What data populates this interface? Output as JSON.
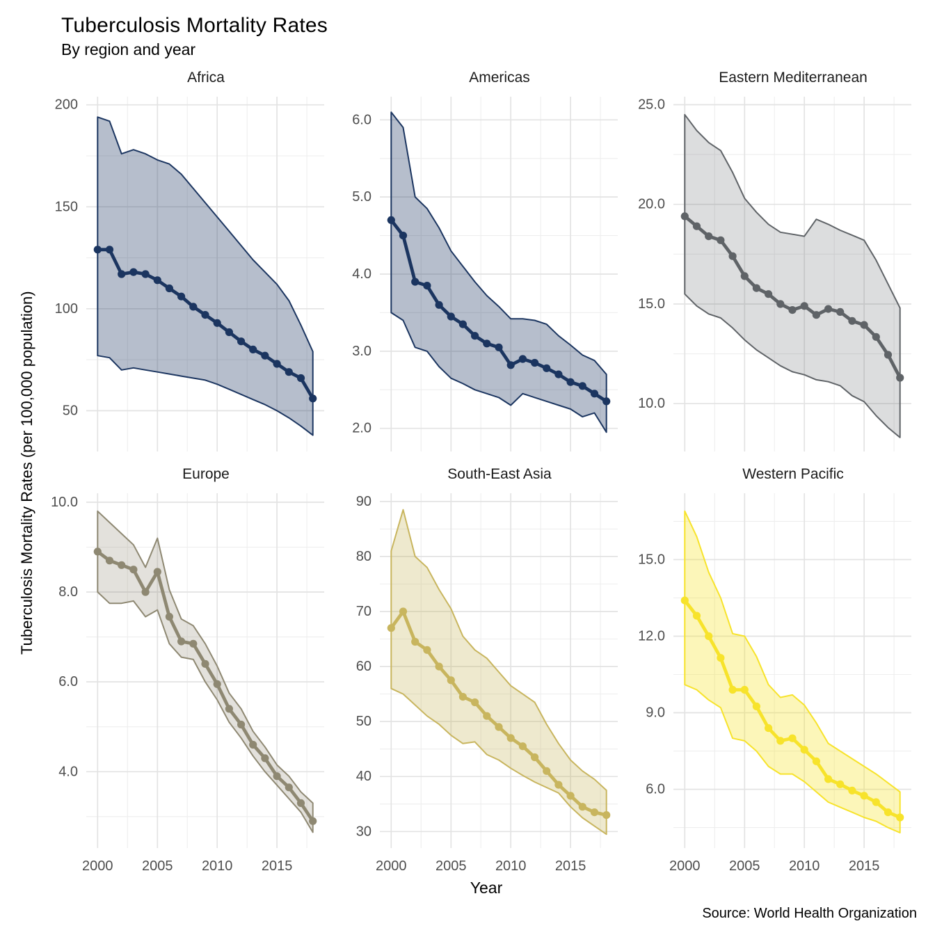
{
  "header": {
    "title": "Tuberculosis Mortality Rates",
    "subtitle": "By region and year"
  },
  "caption": "Source: World Health Organization",
  "axes": {
    "x_label": "Year",
    "y_label": "Tuberculosis Mortality Rates (per 100,000 population)",
    "x_tick_values": [
      2000,
      2005,
      2010,
      2015
    ],
    "x_tick_labels": [
      "2000",
      "2005",
      "2010",
      "2015"
    ],
    "x_minor": [
      2002.5,
      2007.5,
      2012.5,
      2017.5
    ],
    "x_range": [
      1999.05,
      2018.95
    ],
    "grid": "on",
    "background": "#ffffff"
  },
  "style": {
    "major_grid_color": "#e3e3e3",
    "minor_grid_color": "#eeeeee",
    "tick_label_color": "#4d4d4d"
  },
  "chart_data": [
    {
      "type": "line",
      "name": "Africa",
      "line_color": "#1b3560",
      "ribbon_opacity": 0.32,
      "ylim": [
        30,
        204
      ],
      "y_tick_values": [
        50,
        100,
        150,
        200
      ],
      "y_tick_labels": [
        "50",
        "100",
        "150",
        "200"
      ],
      "y_minor": [
        75,
        125,
        175
      ],
      "x": [
        2000,
        2001,
        2002,
        2003,
        2004,
        2005,
        2006,
        2007,
        2008,
        2009,
        2010,
        2011,
        2012,
        2013,
        2014,
        2015,
        2016,
        2017,
        2018
      ],
      "values": [
        129,
        129,
        117,
        118,
        117,
        114,
        110,
        106,
        101,
        97,
        93,
        88.5,
        84,
        80,
        77,
        73,
        69,
        66,
        56
      ],
      "upper": [
        194,
        192,
        176,
        178,
        176,
        173,
        171,
        166,
        159,
        152,
        145,
        138,
        131,
        124,
        118,
        112,
        104,
        92,
        79
      ],
      "lower": [
        77,
        76,
        70,
        71,
        70,
        69,
        68,
        67,
        66,
        65,
        63,
        60.5,
        58,
        55.5,
        53,
        50,
        46.5,
        42.5,
        38
      ]
    },
    {
      "type": "line",
      "name": "Americas",
      "line_color": "#1b3560",
      "ribbon_opacity": 0.32,
      "ylim": [
        1.7,
        6.3
      ],
      "y_tick_values": [
        2,
        3,
        4,
        5,
        6
      ],
      "y_tick_labels": [
        "2.0",
        "3.0",
        "4.0",
        "5.0",
        "6.0"
      ],
      "y_minor": [
        2.5,
        3.5,
        4.5,
        5.5
      ],
      "x": [
        2000,
        2001,
        2002,
        2003,
        2004,
        2005,
        2006,
        2007,
        2008,
        2009,
        2010,
        2011,
        2012,
        2013,
        2014,
        2015,
        2016,
        2017,
        2018
      ],
      "values": [
        4.7,
        4.5,
        3.9,
        3.85,
        3.6,
        3.45,
        3.35,
        3.2,
        3.1,
        3.05,
        2.82,
        2.9,
        2.85,
        2.78,
        2.7,
        2.6,
        2.55,
        2.45,
        2.35
      ],
      "upper": [
        6.1,
        5.9,
        5.0,
        4.85,
        4.6,
        4.3,
        4.1,
        3.9,
        3.72,
        3.58,
        3.42,
        3.42,
        3.4,
        3.35,
        3.2,
        3.08,
        2.95,
        2.88,
        2.7
      ],
      "lower": [
        3.5,
        3.4,
        3.05,
        3.0,
        2.8,
        2.65,
        2.58,
        2.5,
        2.45,
        2.4,
        2.3,
        2.45,
        2.4,
        2.35,
        2.3,
        2.25,
        2.15,
        2.2,
        1.95
      ]
    },
    {
      "type": "line",
      "name": "Eastern Mediterranean",
      "line_color": "#5f6367",
      "ribbon_opacity": 0.22,
      "ylim": [
        7.6,
        25.4
      ],
      "y_tick_values": [
        10,
        15,
        20,
        25
      ],
      "y_tick_labels": [
        "10.0",
        "15.0",
        "20.0",
        "25.0"
      ],
      "y_minor": [
        12.5,
        17.5,
        22.5
      ],
      "x": [
        2000,
        2001,
        2002,
        2003,
        2004,
        2005,
        2006,
        2007,
        2008,
        2009,
        2010,
        2011,
        2012,
        2013,
        2014,
        2015,
        2016,
        2017,
        2018
      ],
      "values": [
        19.4,
        18.9,
        18.4,
        18.2,
        17.4,
        16.4,
        15.8,
        15.5,
        15.0,
        14.7,
        14.9,
        14.45,
        14.75,
        14.6,
        14.15,
        13.95,
        13.35,
        12.45,
        11.3
      ],
      "upper": [
        24.5,
        23.7,
        23.1,
        22.7,
        21.6,
        20.3,
        19.6,
        19.0,
        18.6,
        18.5,
        18.4,
        19.25,
        19.0,
        18.7,
        18.45,
        18.2,
        17.2,
        16.0,
        14.8
      ],
      "lower": [
        15.5,
        14.9,
        14.5,
        14.3,
        13.8,
        13.2,
        12.7,
        12.3,
        11.9,
        11.6,
        11.45,
        11.2,
        11.1,
        10.9,
        10.4,
        10.1,
        9.4,
        8.8,
        8.3
      ]
    },
    {
      "type": "line",
      "name": "Europe",
      "line_color": "#8e8872",
      "ribbon_opacity": 0.25,
      "ylim": [
        2.3,
        10.2
      ],
      "y_tick_values": [
        4,
        6,
        8,
        10
      ],
      "y_tick_labels": [
        "4.0",
        "6.0",
        "8.0",
        "10.0"
      ],
      "y_minor": [
        3,
        5,
        7,
        9
      ],
      "x": [
        2000,
        2001,
        2002,
        2003,
        2004,
        2005,
        2006,
        2007,
        2008,
        2009,
        2010,
        2011,
        2012,
        2013,
        2014,
        2015,
        2016,
        2017,
        2018
      ],
      "values": [
        8.9,
        8.7,
        8.6,
        8.5,
        8.0,
        8.45,
        7.45,
        6.9,
        6.85,
        6.4,
        5.95,
        5.4,
        5.05,
        4.6,
        4.3,
        3.9,
        3.65,
        3.3,
        2.9
      ],
      "upper": [
        9.8,
        9.55,
        9.3,
        9.05,
        8.55,
        9.2,
        8.05,
        7.4,
        7.25,
        6.85,
        6.35,
        5.75,
        5.4,
        4.9,
        4.55,
        4.15,
        3.9,
        3.55,
        3.3
      ],
      "lower": [
        8.0,
        7.75,
        7.75,
        7.8,
        7.45,
        7.6,
        6.85,
        6.55,
        6.5,
        6.0,
        5.6,
        5.1,
        4.75,
        4.35,
        4.0,
        3.7,
        3.4,
        3.1,
        2.65
      ]
    },
    {
      "type": "line",
      "name": "South-East Asia",
      "line_color": "#c8b55e",
      "ribbon_opacity": 0.3,
      "ylim": [
        27,
        91.5
      ],
      "y_tick_values": [
        30,
        40,
        50,
        60,
        70,
        80,
        90
      ],
      "y_tick_labels": [
        "30",
        "40",
        "50",
        "60",
        "70",
        "80",
        "90"
      ],
      "y_minor": [
        35,
        45,
        55,
        65,
        75,
        85
      ],
      "x": [
        2000,
        2001,
        2002,
        2003,
        2004,
        2005,
        2006,
        2007,
        2008,
        2009,
        2010,
        2011,
        2012,
        2013,
        2014,
        2015,
        2016,
        2017,
        2018
      ],
      "values": [
        67,
        70,
        64.5,
        63,
        60,
        57.5,
        54.5,
        53.5,
        51,
        49,
        47,
        45.5,
        43.5,
        41,
        38.5,
        36.5,
        34.5,
        33.5,
        33
      ],
      "upper": [
        81,
        88.5,
        80,
        78,
        74,
        70.5,
        65.5,
        63,
        61.5,
        59,
        56.5,
        55,
        53.5,
        49.5,
        46,
        43,
        41,
        39.5,
        37.5
      ],
      "lower": [
        56,
        55,
        53,
        51,
        49.5,
        47.5,
        46,
        46.3,
        44,
        43,
        41.5,
        40.2,
        39,
        38,
        37,
        34.5,
        32.5,
        31,
        29.5
      ]
    },
    {
      "type": "line",
      "name": "Western Pacific",
      "line_color": "#f7e32b",
      "ribbon_opacity": 0.33,
      "ylim": [
        3.7,
        17.6
      ],
      "y_tick_values": [
        6,
        9,
        12,
        15
      ],
      "y_tick_labels": [
        "6.0",
        "9.0",
        "12.0",
        "15.0"
      ],
      "y_minor": [
        4.5,
        7.5,
        10.5,
        13.5,
        16.5
      ],
      "x": [
        2000,
        2001,
        2002,
        2003,
        2004,
        2005,
        2006,
        2007,
        2008,
        2009,
        2010,
        2011,
        2012,
        2013,
        2014,
        2015,
        2016,
        2017,
        2018
      ],
      "values": [
        13.4,
        12.8,
        12.0,
        11.15,
        9.9,
        9.9,
        9.25,
        8.4,
        7.9,
        8.0,
        7.55,
        7.1,
        6.4,
        6.2,
        5.95,
        5.75,
        5.5,
        5.1,
        4.9
      ],
      "upper": [
        16.9,
        15.9,
        14.5,
        13.5,
        12.1,
        12.0,
        11.2,
        10.1,
        9.6,
        9.7,
        9.3,
        8.6,
        7.8,
        7.5,
        7.2,
        6.9,
        6.6,
        6.25,
        5.9
      ],
      "lower": [
        10.1,
        9.9,
        9.5,
        9.2,
        8.0,
        7.9,
        7.5,
        6.9,
        6.6,
        6.6,
        6.3,
        5.9,
        5.5,
        5.3,
        5.1,
        4.9,
        4.75,
        4.5,
        4.3
      ]
    }
  ]
}
